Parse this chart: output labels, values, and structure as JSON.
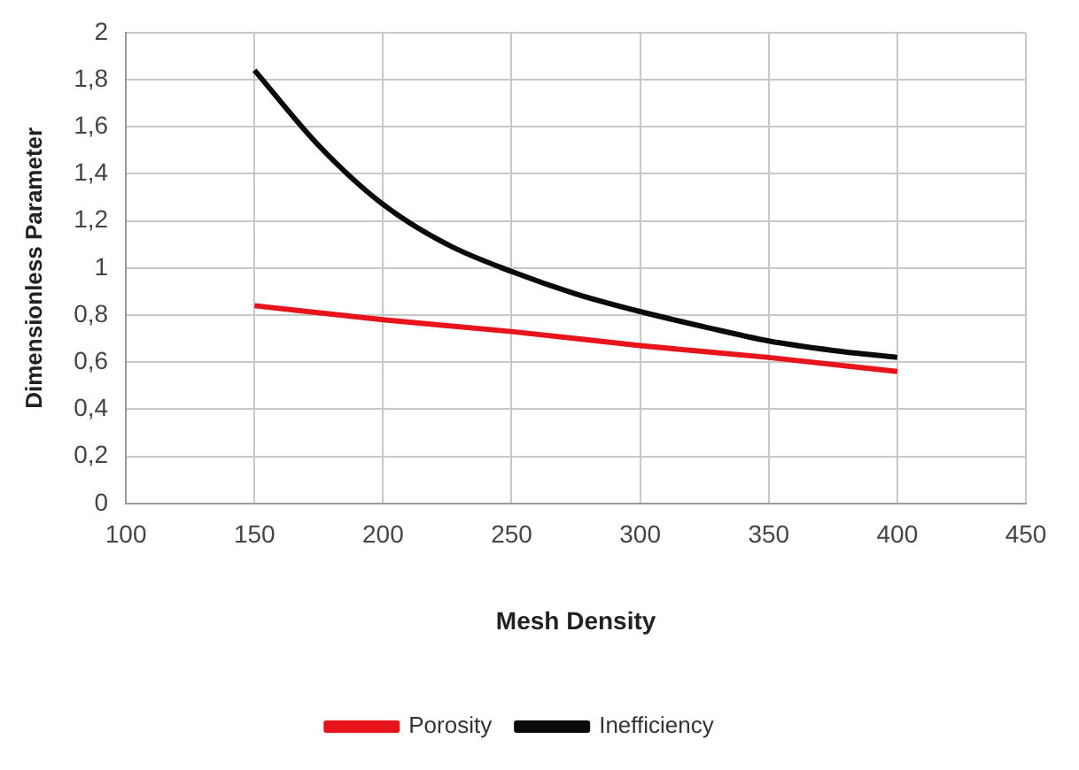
{
  "chart_data": {
    "type": "line",
    "xlabel": "Mesh Density",
    "ylabel": "Dimensionless Parameter",
    "xlim": [
      100,
      450
    ],
    "xticks": [
      100,
      150,
      200,
      250,
      300,
      350,
      400,
      450
    ],
    "ylim": [
      0,
      2
    ],
    "yticks": [
      0,
      {
        "value": 0.2,
        "label": "0,2"
      },
      {
        "value": 0.4,
        "label": "0,4"
      },
      {
        "value": 0.6,
        "label": "0,6"
      },
      {
        "value": 0.8,
        "label": "0,8"
      },
      1,
      {
        "value": 1.2,
        "label": "1,2"
      },
      {
        "value": 1.4,
        "label": "1,4"
      },
      {
        "value": 1.6,
        "label": "1,6"
      },
      {
        "value": 1.8,
        "label": "1,8"
      },
      2
    ],
    "grid": true,
    "legend": "bottom",
    "marker": "none",
    "series": [
      {
        "name": "Porosity",
        "color": "#e8141c",
        "x": [
          150,
          200,
          250,
          300,
          350,
          400
        ],
        "values": [
          0.84,
          0.78,
          0.73,
          0.67,
          0.62,
          0.56
        ]
      },
      {
        "name": "Inefficiency",
        "color": "#0a0a0a",
        "x": [
          150,
          175,
          200,
          225,
          250,
          275,
          300,
          325,
          350,
          375,
          400
        ],
        "values": [
          1.84,
          1.52,
          1.27,
          1.1,
          0.985,
          0.89,
          0.815,
          0.75,
          0.69,
          0.65,
          0.62
        ]
      }
    ]
  }
}
